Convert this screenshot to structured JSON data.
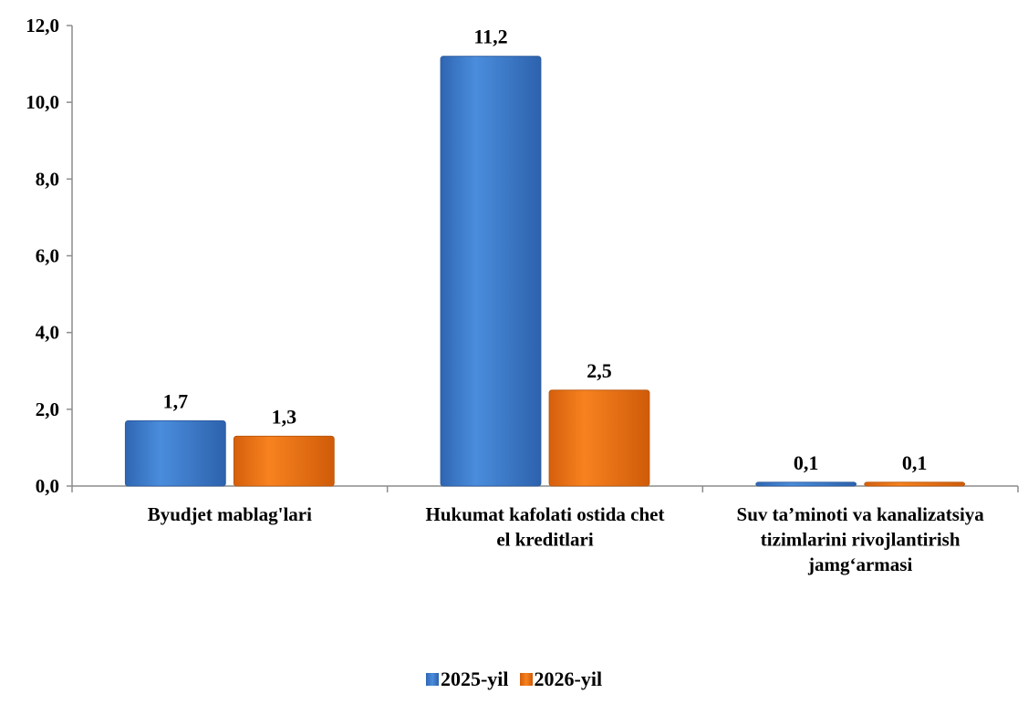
{
  "chart_data": {
    "type": "bar",
    "categories": [
      "Byudjet mablag'lari",
      "Hukumat kafolati ostida chet el kreditlari",
      "Suv ta’minoti va kanalizatsiya tizimlarini rivojlantirish jamg‘armasi"
    ],
    "category_lines": [
      [
        "Byudjet mablag'lari"
      ],
      [
        "Hukumat kafolati ostida chet",
        "el kreditlari"
      ],
      [
        "Suv ta’minoti va kanalizatsiya",
        "tizimlarini rivojlantirish",
        "jamg‘armasi"
      ]
    ],
    "series": [
      {
        "name": "2025-yil",
        "values": [
          1.7,
          11.2,
          0.1
        ],
        "labels": [
          "1,7",
          "11,2",
          "0,1"
        ],
        "color": "#3f7fd0"
      },
      {
        "name": "2026-yil",
        "values": [
          1.3,
          2.5,
          0.1
        ],
        "labels": [
          "1,3",
          "2,5",
          "0,1"
        ],
        "color": "#ee7218"
      }
    ],
    "ylim": [
      0,
      12
    ],
    "yticks": [
      "0,0",
      "2,0",
      "4,0",
      "6,0",
      "8,0",
      "10,0",
      "12,0"
    ],
    "grid": false,
    "legend_position": "bottom"
  }
}
